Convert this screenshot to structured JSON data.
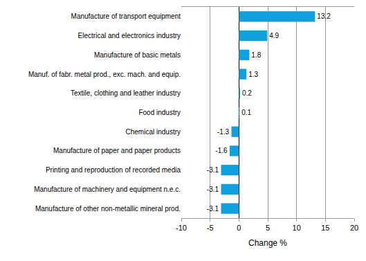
{
  "chart_data": {
    "type": "bar",
    "orientation": "horizontal",
    "categories": [
      "Manufacture of transport equipment",
      "Electrical and electronics industry",
      "Manufacture of basic metals",
      "Manuf. of fabr. metal prod., exc. mach. and equip.",
      "Textile, clothing and leather industry",
      "Food industry",
      "Chemical industry",
      "Manufacture of paper and paper products",
      "Printing and reproduction of recorded media",
      "Manufacture of machinery and equipment n.e.c.",
      "Manufacture of other non-metallic mineral prod."
    ],
    "values": [
      13.2,
      4.9,
      1.8,
      1.3,
      0.2,
      0.1,
      -1.3,
      -1.6,
      -3.1,
      -3.1,
      -3.1
    ],
    "color": "#109fdf",
    "x_label": "Change %",
    "xlim": [
      -10,
      20
    ],
    "xticks": [
      -10,
      -5,
      0,
      5,
      10,
      15,
      20
    ],
    "grid": true,
    "data_labels": true
  }
}
